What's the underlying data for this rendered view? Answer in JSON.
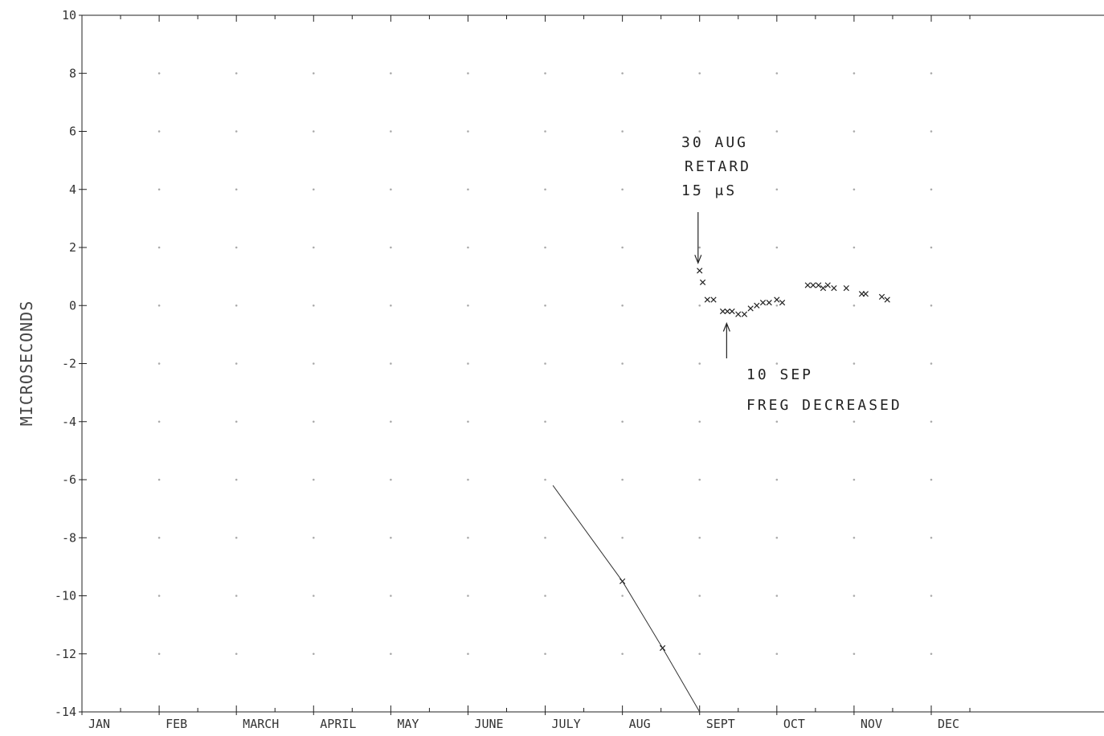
{
  "chart_data": {
    "type": "scatter",
    "title": "",
    "xlabel": "",
    "ylabel": "MICROSECONDS",
    "ylim": [
      -14,
      10
    ],
    "yticks": [
      10,
      8,
      6,
      4,
      2,
      0,
      -2,
      -4,
      -6,
      -8,
      -10,
      -12,
      -14
    ],
    "ytick_labels": [
      "10",
      "8",
      "6",
      "4",
      "2",
      "0",
      "-2",
      "-4",
      "-6",
      "-8",
      "-10",
      "-12",
      "-14"
    ],
    "xlim": [
      0,
      12
    ],
    "categories": [
      "JAN",
      "FEB",
      "MARCH",
      "APRIL",
      "MAY",
      "JUNE",
      "JULY",
      "AUG",
      "SEPT",
      "OCT",
      "NOV",
      "DEC"
    ],
    "grid": "dotted",
    "series": [
      {
        "style": "line-with-markers",
        "x": [
          6.1,
          7.0,
          7.52,
          8.0
        ],
        "y": [
          -6.2,
          -9.5,
          -11.8,
          -14.0
        ]
      },
      {
        "style": "markers",
        "x": [
          8.0,
          8.04,
          8.1,
          8.18,
          8.3,
          8.36,
          8.42,
          8.5,
          8.58,
          8.66,
          8.74,
          8.82,
          8.9,
          9.0,
          9.07,
          9.4,
          9.47,
          9.54,
          9.6,
          9.66,
          9.74,
          9.9,
          10.1,
          10.15,
          10.36,
          10.43
        ],
        "y": [
          1.2,
          0.8,
          0.2,
          0.2,
          -0.2,
          -0.2,
          -0.2,
          -0.3,
          -0.3,
          -0.1,
          0.0,
          0.1,
          0.1,
          0.2,
          0.1,
          0.7,
          0.7,
          0.7,
          0.6,
          0.7,
          0.6,
          0.6,
          0.4,
          0.4,
          0.3,
          0.2
        ]
      }
    ],
    "annotations": [
      {
        "lines": [
          "30 AUG",
          "RETARD",
          "15 μS"
        ],
        "arrow_to": [
          7.98,
          1.3
        ]
      },
      {
        "lines": [
          "10 SEP",
          "FREG DECREASED"
        ],
        "arrow_to": [
          8.35,
          -0.45
        ]
      }
    ]
  }
}
